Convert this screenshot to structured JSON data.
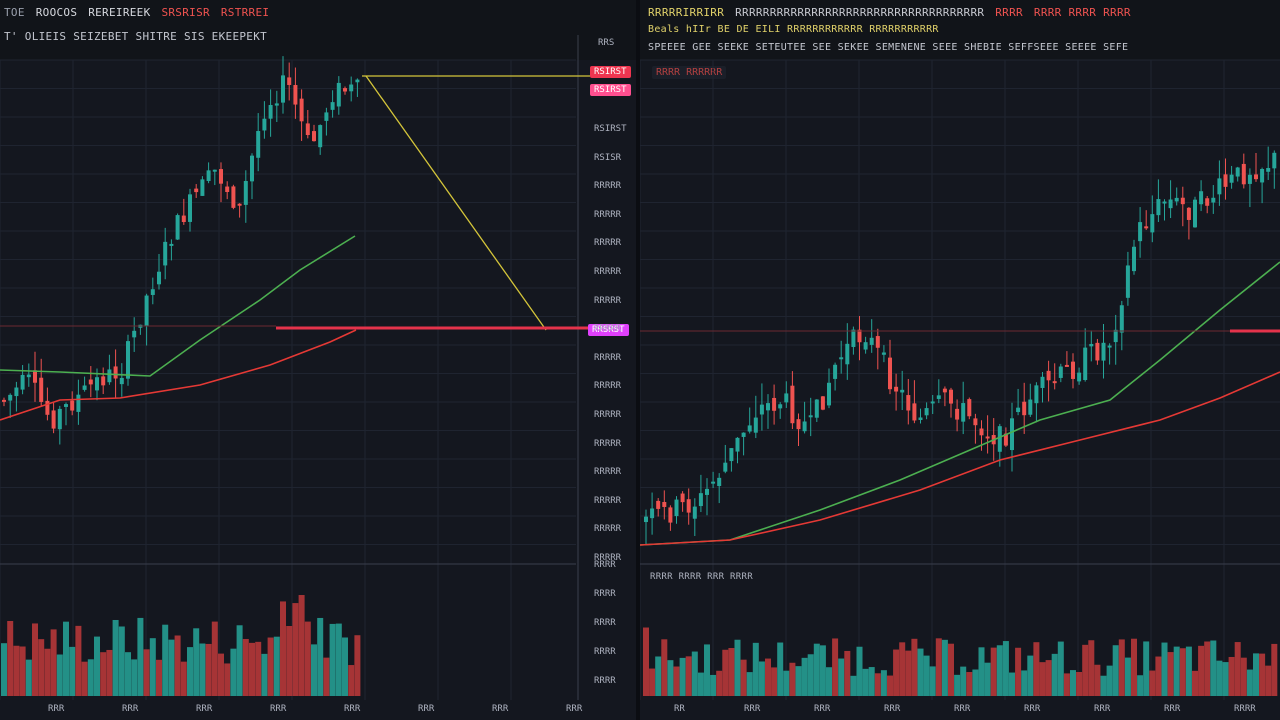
{
  "left_chart": {
    "header_line_1": [
      "TOE",
      "ROOCOS",
      "REREIREEK",
      "SRSRISR",
      "RSTRREI"
    ],
    "header_line_2": "T' OLIEIS SEIZEBET SHITRE SIS EKEEPEKT",
    "price_labels": [
      "RSIRST",
      "RSISR",
      "RRRRR",
      "RRRRR",
      "RRRRR",
      "RRRRR",
      "RRRRR",
      "RRRRR",
      "RRRRR",
      "RRRRR",
      "RRRRR",
      "RRRRR",
      "RRRRR",
      "RRRRR",
      "RRRRR",
      "RRRRR"
    ],
    "price_tag_top": "RSIRST",
    "price_tag_mid": "RRSRST",
    "volume_labels": [
      "RRRR",
      "RRRR",
      "RRRR",
      "RRRR",
      "RRRR"
    ],
    "time_labels": [
      "RRR",
      "RRR",
      "RRR",
      "RRR",
      "RRR",
      "RRR",
      "RRR",
      "RRR"
    ],
    "top_right_mark": "RRS"
  },
  "right_chart": {
    "header_line_1": [
      "RRRRRIRRIRR",
      "RRRRRRRRRRRRRRRRRRRRRRRRRRRRRRRRRRRR",
      "RRRR",
      "RRRR RRRR RRRR"
    ],
    "header_line_2": "Beals hIIr BE DE EILI  RRRRRRRRRRRR RRRRRRRRRRR",
    "header_line_3": "SPEEEE GEE SEEKE SETEUTEE SEE SEKEE SEMENENE SEEE SHEBIE SEFFSEEE SEEEE SEFE",
    "badge": "RRRR RRRRRR",
    "volume_header": "RRRR RRRR RRR RRRR",
    "time_labels": [
      "RR",
      "RRR",
      "RRR",
      "RRR",
      "RRR",
      "RRR",
      "RRR",
      "RRR",
      "RRRR"
    ]
  },
  "colors": {
    "background": "#14171f",
    "bull": "#26a69a",
    "bear": "#ef5350",
    "ma_fast": "#4caf50",
    "ma_slow": "#e53935",
    "trend": "#d4c53a",
    "level": "#e5334b",
    "tag_pink": "#ff3fa4"
  }
}
